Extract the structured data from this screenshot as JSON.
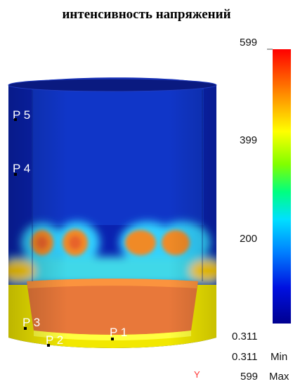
{
  "title": "интенсивность напряжений",
  "colorbar": {
    "max_label": "599",
    "mid_upper_label": "399",
    "mid_lower_label": "200",
    "min_label": "0.311",
    "colors": [
      "#ff0000",
      "#ff8000",
      "#ffff00",
      "#80ff00",
      "#00ff80",
      "#00c0ff",
      "#0060ff",
      "#0000c0",
      "#000090"
    ]
  },
  "stats": {
    "min_value": "0.311",
    "min_word": "Min",
    "max_value": "599",
    "max_word": "Max"
  },
  "probes": [
    {
      "label": "P 5"
    },
    {
      "label": "P 4"
    },
    {
      "label": "P 3"
    },
    {
      "label": "P 2"
    },
    {
      "label": "P 1"
    }
  ],
  "axis": {
    "y_label": "Y"
  },
  "colors": {
    "deep_blue": "#0a22b0",
    "blue": "#1444d8",
    "orange": "#f08a28",
    "yellow": "#f2e800",
    "red_orange": "#e8642c"
  }
}
